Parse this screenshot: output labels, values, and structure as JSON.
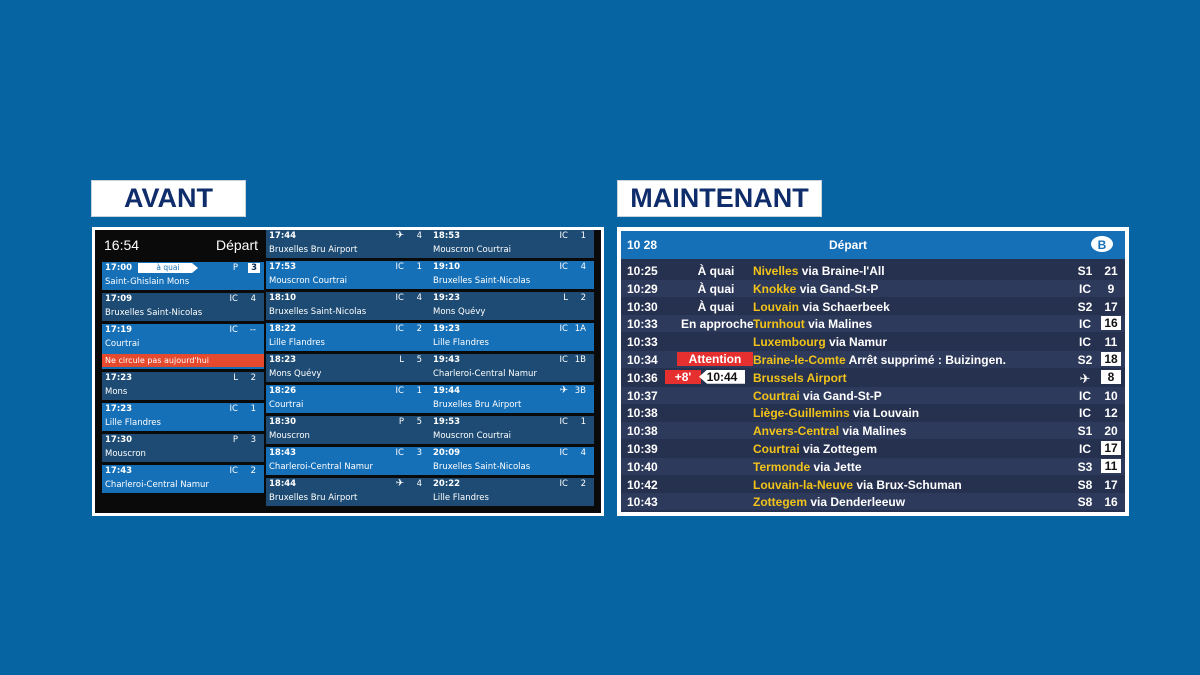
{
  "labels": {
    "avant": "AVANT",
    "maintenant": "MAINTENANT"
  },
  "old_board": {
    "time": "16:54",
    "title": "Départ",
    "col1": [
      {
        "time": "17:00",
        "status": "à quai",
        "type": "P",
        "platform": "3",
        "platform_boxed": true,
        "dest": "Saint-Ghislain Mons"
      },
      {
        "time": "17:09",
        "type": "IC",
        "platform": "4",
        "dest": "Bruxelles Saint-Nicolas"
      },
      {
        "time": "17:19",
        "type": "IC",
        "platform": "--",
        "dest": "Courtrai",
        "warning": "Ne circule pas aujourd'hui"
      },
      {
        "time": "17:23",
        "type": "L",
        "platform": "2",
        "dest": "Mons"
      },
      {
        "time": "17:23",
        "type": "IC",
        "platform": "1",
        "dest": "Lille Flandres"
      },
      {
        "time": "17:30",
        "type": "P",
        "platform": "3",
        "dest": "Mouscron"
      },
      {
        "time": "17:43",
        "type": "IC",
        "platform": "2",
        "dest": "Charleroi-Central Namur"
      }
    ],
    "col2": [
      {
        "time": "17:44",
        "type": "✈",
        "platform": "4",
        "dest": "Bruxelles Bru Airport"
      },
      {
        "time": "17:53",
        "type": "IC",
        "platform": "1",
        "dest": "Mouscron Courtrai"
      },
      {
        "time": "18:10",
        "type": "IC",
        "platform": "4",
        "dest": "Bruxelles Saint-Nicolas"
      },
      {
        "time": "18:22",
        "type": "IC",
        "platform": "2",
        "dest": "Lille Flandres"
      },
      {
        "time": "18:23",
        "type": "L",
        "platform": "5",
        "dest": "Mons Quévy"
      },
      {
        "time": "18:26",
        "type": "IC",
        "platform": "1",
        "dest": "Courtrai"
      },
      {
        "time": "18:30",
        "type": "P",
        "platform": "5",
        "dest": "Mouscron"
      },
      {
        "time": "18:43",
        "type": "IC",
        "platform": "3",
        "dest": "Charleroi-Central Namur"
      },
      {
        "time": "18:44",
        "type": "✈",
        "platform": "4",
        "dest": "Bruxelles Bru Airport"
      }
    ],
    "col3": [
      {
        "time": "18:53",
        "type": "IC",
        "platform": "1",
        "dest": "Mouscron Courtrai"
      },
      {
        "time": "19:10",
        "type": "IC",
        "platform": "4",
        "dest": "Bruxelles Saint-Nicolas"
      },
      {
        "time": "19:23",
        "type": "L",
        "platform": "2",
        "dest": "Mons Quévy"
      },
      {
        "time": "19:23",
        "type": "IC",
        "platform": "1A",
        "dest": "Lille Flandres"
      },
      {
        "time": "19:43",
        "type": "IC",
        "platform": "1B",
        "dest": "Charleroi-Central Namur"
      },
      {
        "time": "19:44",
        "type": "✈",
        "platform": "3B",
        "dest": "Bruxelles Bru Airport"
      },
      {
        "time": "19:53",
        "type": "IC",
        "platform": "1",
        "dest": "Mouscron Courtrai"
      },
      {
        "time": "20:09",
        "type": "IC",
        "platform": "4",
        "dest": "Bruxelles Saint-Nicolas"
      },
      {
        "time": "20:22",
        "type": "IC",
        "platform": "2",
        "dest": "Lille Flandres"
      }
    ]
  },
  "new_board": {
    "time": "10 28",
    "title": "Départ",
    "logo_letter": "B",
    "rows": [
      {
        "time": "10:25",
        "status": "À quai",
        "dest": "Nivelles",
        "via": "via Braine-l'All",
        "type": "S1",
        "platform": "21"
      },
      {
        "time": "10:29",
        "status": "À quai",
        "dest": "Knokke",
        "via": "via Gand-St-P",
        "type": "IC",
        "platform": "9"
      },
      {
        "time": "10:30",
        "status": "À quai",
        "dest": "Louvain",
        "via": "via Schaerbeek",
        "type": "S2",
        "platform": "17"
      },
      {
        "time": "10:33",
        "status": "En approche",
        "dest": "Turnhout",
        "via": "via Malines",
        "type": "IC",
        "platform": "16",
        "platform_boxed": true
      },
      {
        "time": "10:33",
        "status": "",
        "dest": "Luxembourg",
        "via": "via Namur",
        "type": "IC",
        "platform": "11"
      },
      {
        "time": "10:34",
        "status": "Attention",
        "status_alert": true,
        "dest": "Braine-le-Comte",
        "via": "Arrêt supprimé : Buizingen.",
        "type": "S2",
        "platform": "18",
        "platform_boxed": true
      },
      {
        "time": "10:36",
        "delay": "+8'",
        "new_time": "10:44",
        "dest": "Brussels Airport",
        "via": "",
        "type": "✈",
        "platform": "8",
        "platform_boxed": true
      },
      {
        "time": "10:37",
        "status": "",
        "dest": "Courtrai",
        "via": "via Gand-St-P",
        "type": "IC",
        "platform": "10"
      },
      {
        "time": "10:38",
        "status": "",
        "dest": "Liège-Guillemins",
        "via": "via Louvain",
        "type": "IC",
        "platform": "12"
      },
      {
        "time": "10:38",
        "status": "",
        "dest": "Anvers-Central",
        "via": "via Malines",
        "type": "S1",
        "platform": "20"
      },
      {
        "time": "10:39",
        "status": "",
        "dest": "Courtrai",
        "via": "via Zottegem",
        "type": "IC",
        "platform": "17",
        "platform_boxed": true
      },
      {
        "time": "10:40",
        "status": "",
        "dest": "Termonde",
        "via": "via Jette",
        "type": "S3",
        "platform": "11",
        "platform_boxed": true
      },
      {
        "time": "10:42",
        "status": "",
        "dest": "Louvain-la-Neuve",
        "via": "via Brux-Schuman",
        "type": "S8",
        "platform": "17"
      },
      {
        "time": "10:43",
        "status": "",
        "dest": "Zottegem",
        "via": "via Denderleeuw",
        "type": "S8",
        "platform": "16"
      }
    ]
  }
}
